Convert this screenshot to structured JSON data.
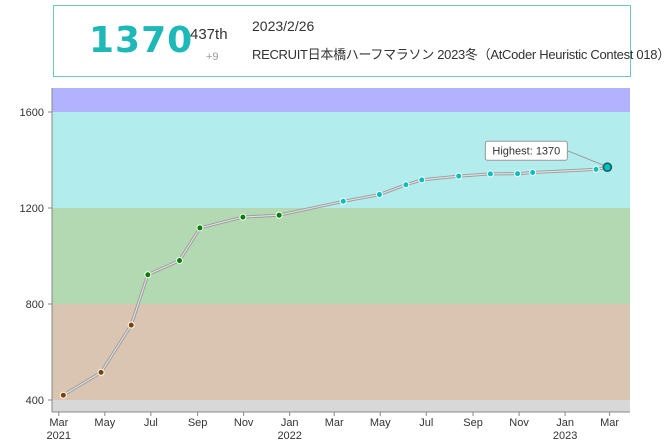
{
  "header": {
    "rating": "1370",
    "rank": "437th",
    "rating_change": "+9",
    "date": "2023/2/26",
    "contest": "RECRUIT日本橋ハーフマラソン 2023冬（AtCoder Heuristic Contest 018）"
  },
  "chart_data": {
    "type": "line",
    "title": "",
    "xlabel": "",
    "ylabel": "",
    "ylim": [
      350,
      1700
    ],
    "xlim": [
      "2021-02-20",
      "2023-03-28"
    ],
    "y_ticks": [
      400,
      800,
      1200,
      1600
    ],
    "x_ticks": [
      {
        "date": "2021-03-01",
        "label": "Mar",
        "year": "2021"
      },
      {
        "date": "2021-05-01",
        "label": "May",
        "year": ""
      },
      {
        "date": "2021-07-01",
        "label": "Jul",
        "year": ""
      },
      {
        "date": "2021-09-01",
        "label": "Sep",
        "year": ""
      },
      {
        "date": "2021-11-01",
        "label": "Nov",
        "year": ""
      },
      {
        "date": "2022-01-01",
        "label": "Jan",
        "year": "2022"
      },
      {
        "date": "2022-03-01",
        "label": "Mar",
        "year": ""
      },
      {
        "date": "2022-05-01",
        "label": "May",
        "year": ""
      },
      {
        "date": "2022-07-01",
        "label": "Jul",
        "year": ""
      },
      {
        "date": "2022-09-01",
        "label": "Sep",
        "year": ""
      },
      {
        "date": "2022-11-01",
        "label": "Nov",
        "year": ""
      },
      {
        "date": "2023-01-01",
        "label": "Jan",
        "year": "2023"
      },
      {
        "date": "2023-03-01",
        "label": "Mar",
        "year": ""
      }
    ],
    "bands": [
      {
        "from": 0,
        "to": 400,
        "color": "#d8d8d8"
      },
      {
        "from": 400,
        "to": 800,
        "color": "#d9c5b2"
      },
      {
        "from": 800,
        "to": 1200,
        "color": "#b2d9b2"
      },
      {
        "from": 1200,
        "to": 1600,
        "color": "#b2ecec"
      },
      {
        "from": 1600,
        "to": 2000,
        "color": "#b2b2ff"
      }
    ],
    "series": [
      {
        "points": [
          {
            "x": "2021-03-07",
            "y": 420,
            "color": "#804000"
          },
          {
            "x": "2021-04-26",
            "y": 515,
            "color": "#804000"
          },
          {
            "x": "2021-06-05",
            "y": 712,
            "color": "#804000"
          },
          {
            "x": "2021-06-27",
            "y": 922,
            "color": "#008000"
          },
          {
            "x": "2021-08-08",
            "y": 981,
            "color": "#008000"
          },
          {
            "x": "2021-09-04",
            "y": 1117,
            "color": "#008000"
          },
          {
            "x": "2021-10-31",
            "y": 1162,
            "color": "#008000"
          },
          {
            "x": "2021-12-18",
            "y": 1170,
            "color": "#008000"
          },
          {
            "x": "2022-03-13",
            "y": 1228,
            "color": "#00c0c0"
          },
          {
            "x": "2022-04-30",
            "y": 1256,
            "color": "#00c0c0"
          },
          {
            "x": "2022-06-04",
            "y": 1297,
            "color": "#00c0c0"
          },
          {
            "x": "2022-06-25",
            "y": 1317,
            "color": "#00c0c0"
          },
          {
            "x": "2022-08-13",
            "y": 1333,
            "color": "#00c0c0"
          },
          {
            "x": "2022-09-24",
            "y": 1342,
            "color": "#00c0c0"
          },
          {
            "x": "2022-10-30",
            "y": 1343,
            "color": "#00c0c0"
          },
          {
            "x": "2022-11-19",
            "y": 1348,
            "color": "#00c0c0"
          },
          {
            "x": "2023-02-11",
            "y": 1361,
            "color": "#00c0c0"
          },
          {
            "x": "2023-02-26",
            "y": 1370,
            "color": "#00c0c0"
          }
        ]
      }
    ],
    "highlight": {
      "label": "Highest: 1370",
      "x": "2023-02-26",
      "y": 1370
    }
  }
}
